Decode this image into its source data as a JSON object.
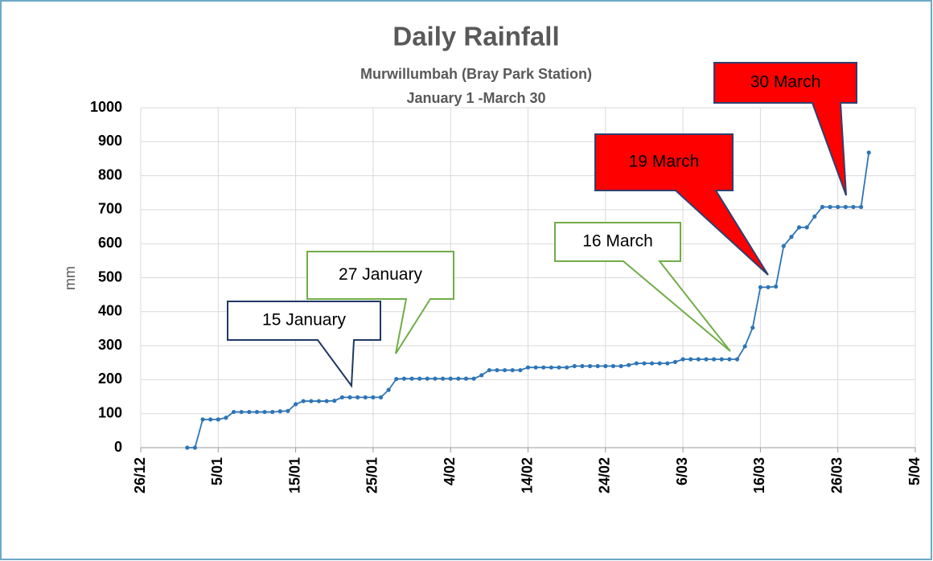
{
  "chart_data": {
    "type": "line",
    "title": "Daily Rainfall",
    "subtitle": [
      "Murwillumbah (Bray Park Station)",
      "January 1 -March 30"
    ],
    "y_label": "mm",
    "color": "#2e75b6",
    "grid": true,
    "x": [
      "1/01",
      "2/01",
      "3/01",
      "4/01",
      "5/01",
      "6/01",
      "7/01",
      "8/01",
      "9/01",
      "10/01",
      "11/01",
      "12/01",
      "13/01",
      "14/01",
      "15/01",
      "16/01",
      "17/01",
      "18/01",
      "19/01",
      "20/01",
      "21/01",
      "22/01",
      "23/01",
      "24/01",
      "25/01",
      "26/01",
      "27/01",
      "28/01",
      "29/01",
      "30/01",
      "31/01",
      "1/02",
      "2/02",
      "3/02",
      "4/02",
      "5/02",
      "6/02",
      "7/02",
      "8/02",
      "9/02",
      "10/02",
      "11/02",
      "12/02",
      "13/02",
      "14/02",
      "15/02",
      "16/02",
      "17/02",
      "18/02",
      "19/02",
      "20/02",
      "21/02",
      "22/02",
      "23/02",
      "24/02",
      "25/02",
      "26/02",
      "27/02",
      "28/02",
      "1/03",
      "2/03",
      "3/03",
      "4/03",
      "5/03",
      "6/03",
      "7/03",
      "8/03",
      "9/03",
      "10/03",
      "11/03",
      "12/03",
      "13/03",
      "14/03",
      "15/03",
      "16/03",
      "17/03",
      "18/03",
      "19/03",
      "20/03",
      "21/03",
      "22/03",
      "23/03",
      "24/03",
      "25/03",
      "26/03",
      "27/03",
      "28/03",
      "29/03",
      "30/03"
    ],
    "values": [
      0,
      0,
      83,
      83,
      83,
      88,
      105,
      105,
      105,
      105,
      105,
      105,
      107,
      108,
      128,
      137,
      137,
      137,
      137,
      138,
      148,
      148,
      148,
      148,
      148,
      148,
      170,
      202,
      203,
      203,
      203,
      203,
      203,
      203,
      203,
      203,
      203,
      203,
      213,
      228,
      228,
      228,
      228,
      228,
      236,
      236,
      236,
      236,
      236,
      236,
      240,
      240,
      240,
      240,
      240,
      240,
      240,
      243,
      248,
      248,
      248,
      248,
      248,
      252,
      260,
      260,
      260,
      260,
      260,
      260,
      260,
      260,
      298,
      353,
      472,
      472,
      474,
      593,
      620,
      648,
      648,
      680,
      708,
      708,
      708,
      708,
      708,
      708,
      868
    ],
    "xlim": [
      "26/12",
      "5/04"
    ],
    "xticks": [
      "26/12",
      "5/01",
      "15/01",
      "25/01",
      "4/02",
      "14/02",
      "24/02",
      "6/03",
      "16/03",
      "26/03",
      "5/04"
    ],
    "ylim": [
      0,
      1000
    ],
    "yticks": [
      0,
      100,
      200,
      300,
      400,
      500,
      600,
      700,
      800,
      900,
      1000
    ],
    "annotations": [
      {
        "text": "15 January",
        "fill": "#ffffff",
        "stroke": "#1f3864"
      },
      {
        "text": "27 January",
        "fill": "#ffffff",
        "stroke": "#70ad47"
      },
      {
        "text": "16 March",
        "fill": "#ffffff",
        "stroke": "#70ad47"
      },
      {
        "text": "19 March",
        "fill": "#ff0000",
        "stroke": "#2f3f6f"
      },
      {
        "text": "30 March",
        "fill": "#ff0000",
        "stroke": "#2f3f6f"
      }
    ]
  }
}
